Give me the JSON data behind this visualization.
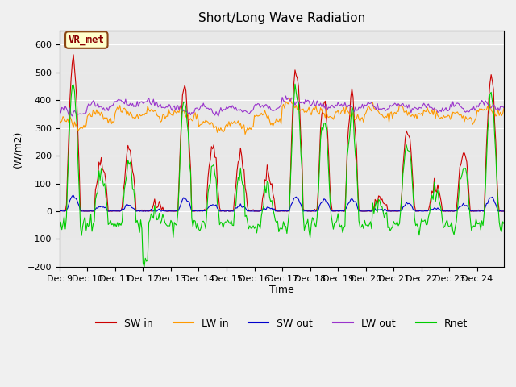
{
  "title": "Short/Long Wave Radiation",
  "ylabel": "(W/m2)",
  "xlabel": "Time",
  "ylim": [
    -200,
    650
  ],
  "x_tick_labels": [
    "Dec 9",
    "Dec 10",
    "Dec 11",
    "Dec 12",
    "Dec 13",
    "Dec 14",
    "Dec 15",
    "Dec 16",
    "Dec 17",
    "Dec 18",
    "Dec 19",
    "Dec 20",
    "Dec 21",
    "Dec 22",
    "Dec 23",
    "Dec 24"
  ],
  "annotation_text": "VR_met",
  "colors": {
    "SW_in": "#cc0000",
    "LW_in": "#ff9900",
    "SW_out": "#0000cc",
    "LW_out": "#9933cc",
    "Rnet": "#00cc00"
  },
  "legend_labels": [
    "SW in",
    "LW in",
    "SW out",
    "LW out",
    "Rnet"
  ],
  "bg_color": "#e8e8e8",
  "grid_color": "#ffffff",
  "n_days": 16,
  "sw_peaks": [
    560,
    190,
    230,
    25,
    450,
    240,
    200,
    130,
    510,
    400,
    410,
    50,
    290,
    90,
    220,
    470
  ],
  "lw_in_bases": [
    315,
    340,
    355,
    350,
    350,
    310,
    310,
    335,
    375,
    350,
    350,
    355,
    355,
    350,
    340,
    360
  ],
  "lw_out_bases": [
    355,
    380,
    390,
    385,
    365,
    365,
    365,
    375,
    400,
    380,
    375,
    375,
    375,
    370,
    370,
    380
  ]
}
